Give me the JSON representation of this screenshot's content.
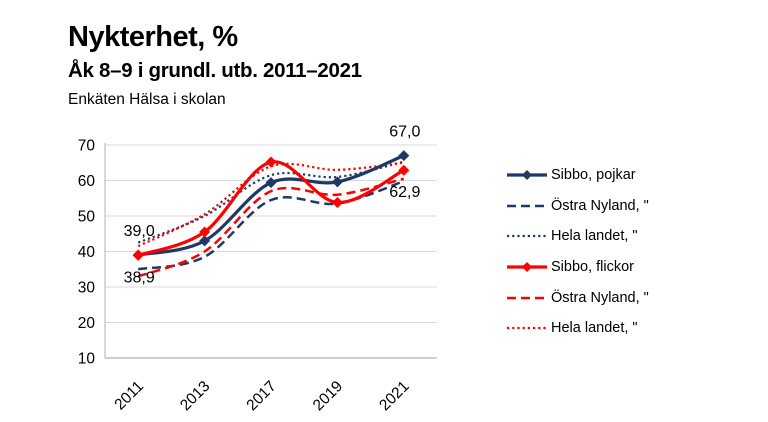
{
  "header": {
    "title": "Nykterhet, %",
    "subtitle": "Åk 8–9 i grundl. utb. 2011–2021",
    "source": "Enkäten Hälsa i skolan"
  },
  "colors": {
    "navy": "#1F3864",
    "red": "#FF0000",
    "gridline": "#D9D9D9",
    "axis": "#BFBFBF",
    "text": "#000000"
  },
  "chart_data": {
    "type": "line",
    "categories": [
      "2011",
      "2013",
      "2017",
      "2019",
      "2021"
    ],
    "yticks": [
      10,
      20,
      30,
      40,
      50,
      60,
      70
    ],
    "ylim": [
      10,
      70
    ],
    "grid": true,
    "smooth": true,
    "legend_position": "right",
    "series": [
      {
        "name": "Sibbo, pojkar",
        "color": "#1F3864",
        "style": "solid",
        "marker": "diamond",
        "values": [
          39.0,
          43.0,
          59.4,
          59.6,
          67.0
        ]
      },
      {
        "name": "Östra Nyland, \"",
        "color": "#1F3864",
        "style": "dashed",
        "marker": "none",
        "values": [
          35.0,
          38.5,
          54.5,
          53.5,
          59.8
        ]
      },
      {
        "name": "Hela landet, \"",
        "color": "#1F3864",
        "style": "dotted",
        "marker": "none",
        "values": [
          42.5,
          50.0,
          61.5,
          61.0,
          65.3
        ]
      },
      {
        "name": "Sibbo, flickor",
        "color": "#FF0000",
        "style": "solid",
        "marker": "diamond",
        "values": [
          38.9,
          45.5,
          65.2,
          53.8,
          62.9
        ]
      },
      {
        "name": "Östra Nyland, \"",
        "color": "#FF0000",
        "style": "dashed",
        "marker": "none",
        "values": [
          33.0,
          40.0,
          57.0,
          56.0,
          60.5
        ]
      },
      {
        "name": "Hela landet, \"",
        "color": "#FF0000",
        "style": "dotted",
        "marker": "none",
        "values": [
          41.5,
          50.5,
          64.0,
          63.0,
          65.0
        ]
      }
    ],
    "annotations": [
      {
        "text": "39,0",
        "x": "2011",
        "value": 39.0,
        "placement": "above"
      },
      {
        "text": "38,9",
        "x": "2011",
        "value": 38.9,
        "placement": "below"
      },
      {
        "text": "67,0",
        "x": "2021",
        "value": 67.0,
        "placement": "above"
      },
      {
        "text": "62,9",
        "x": "2021",
        "value": 62.9,
        "placement": "below"
      }
    ]
  }
}
